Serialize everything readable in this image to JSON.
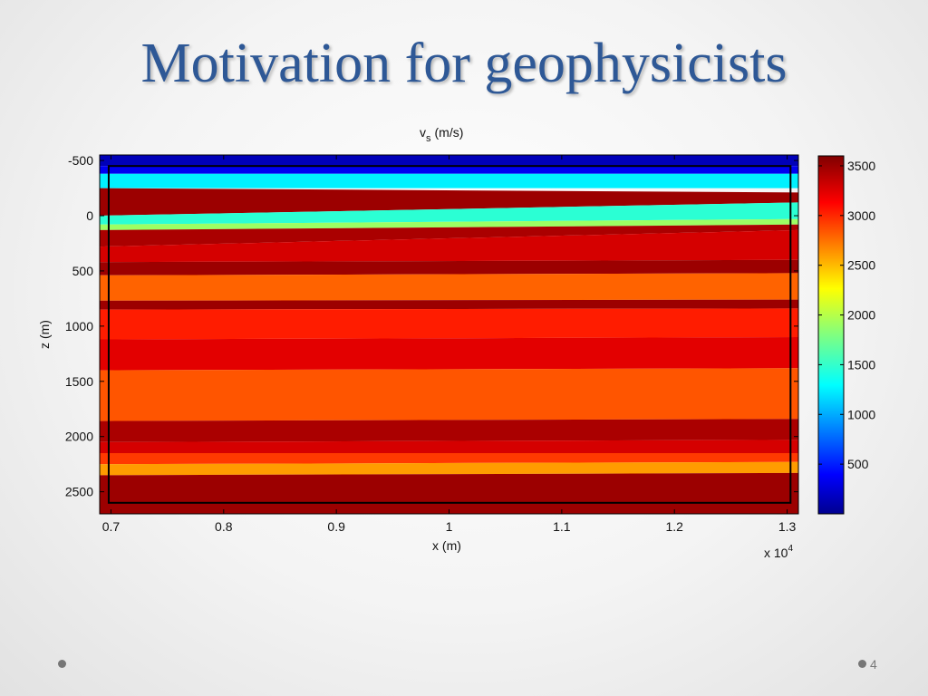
{
  "slide": {
    "title": "Motivation for geophysicists",
    "page_number": "4"
  },
  "chart_data": {
    "type": "heatmap",
    "title_main": "v",
    "title_sub": "s",
    "title_unit": "(m/s)",
    "xlabel": "x (m)",
    "ylabel": "z (m)",
    "x_multiplier_base": "x 10",
    "x_multiplier_exp": "4",
    "xlim": [
      0.69,
      1.31
    ],
    "ylim": [
      -550,
      2700
    ],
    "y_reversed": true,
    "xticks": [
      0.7,
      0.8,
      0.9,
      1,
      1.1,
      1.2,
      1.3
    ],
    "xtick_labels": [
      "0.7",
      "0.8",
      "0.9",
      "1",
      "1.1",
      "1.2",
      "1.3"
    ],
    "yticks": [
      -500,
      0,
      500,
      1000,
      1500,
      2000,
      2500
    ],
    "ytick_labels": [
      "-500",
      "0",
      "500",
      "1000",
      "1500",
      "2000",
      "2500"
    ],
    "colorbar": {
      "colormap": "jet",
      "range": [
        0,
        3600
      ],
      "ticks": [
        500,
        1000,
        1500,
        2000,
        2500,
        3000,
        3500
      ],
      "tick_labels": [
        "500",
        "1000",
        "1500",
        "2000",
        "2500",
        "3000",
        "3500"
      ]
    },
    "inner_box": {
      "x": [
        0.698,
        1.303
      ],
      "z": [
        -450,
        2600
      ]
    },
    "layers": [
      {
        "vs": 200,
        "top": [
          -550,
          -550
        ],
        "bottom": [
          -450,
          -450
        ]
      },
      {
        "vs": 400,
        "top": [
          -450,
          -450
        ],
        "bottom": [
          -380,
          -380
        ]
      },
      {
        "vs": 1300,
        "top": [
          -380,
          -380
        ],
        "bottom": [
          -250,
          -250
        ]
      },
      {
        "vs": 3500,
        "top": [
          -250,
          -210
        ],
        "bottom": [
          0,
          -120
        ]
      },
      {
        "vs": 1500,
        "top": [
          0,
          -120
        ],
        "bottom": [
          80,
          30
        ]
      },
      {
        "vs": 1900,
        "top": [
          80,
          30
        ],
        "bottom": [
          130,
          80
        ]
      },
      {
        "vs": 3450,
        "top": [
          130,
          80
        ],
        "bottom": [
          280,
          130
        ]
      },
      {
        "vs": 3300,
        "top": [
          280,
          130
        ],
        "bottom": [
          420,
          400
        ]
      },
      {
        "vs": 3500,
        "top": [
          420,
          400
        ],
        "bottom": [
          540,
          520
        ]
      },
      {
        "vs": 2800,
        "top": [
          540,
          520
        ],
        "bottom": [
          770,
          760
        ]
      },
      {
        "vs": 3500,
        "top": [
          770,
          760
        ],
        "bottom": [
          850,
          840
        ]
      },
      {
        "vs": 3050,
        "top": [
          850,
          840
        ],
        "bottom": [
          1120,
          1100
        ]
      },
      {
        "vs": 3250,
        "top": [
          1120,
          1100
        ],
        "bottom": [
          1400,
          1380
        ]
      },
      {
        "vs": 2850,
        "top": [
          1400,
          1380
        ],
        "bottom": [
          1860,
          1840
        ]
      },
      {
        "vs": 3450,
        "top": [
          1860,
          1840
        ],
        "bottom": [
          2050,
          2030
        ]
      },
      {
        "vs": 3300,
        "top": [
          2050,
          2030
        ],
        "bottom": [
          2150,
          2150
        ]
      },
      {
        "vs": 2950,
        "top": [
          2150,
          2150
        ],
        "bottom": [
          2250,
          2230
        ]
      },
      {
        "vs": 2600,
        "top": [
          2250,
          2230
        ],
        "bottom": [
          2350,
          2330
        ]
      },
      {
        "vs": 3500,
        "top": [
          2350,
          2330
        ],
        "bottom": [
          2700,
          2700
        ]
      }
    ]
  }
}
